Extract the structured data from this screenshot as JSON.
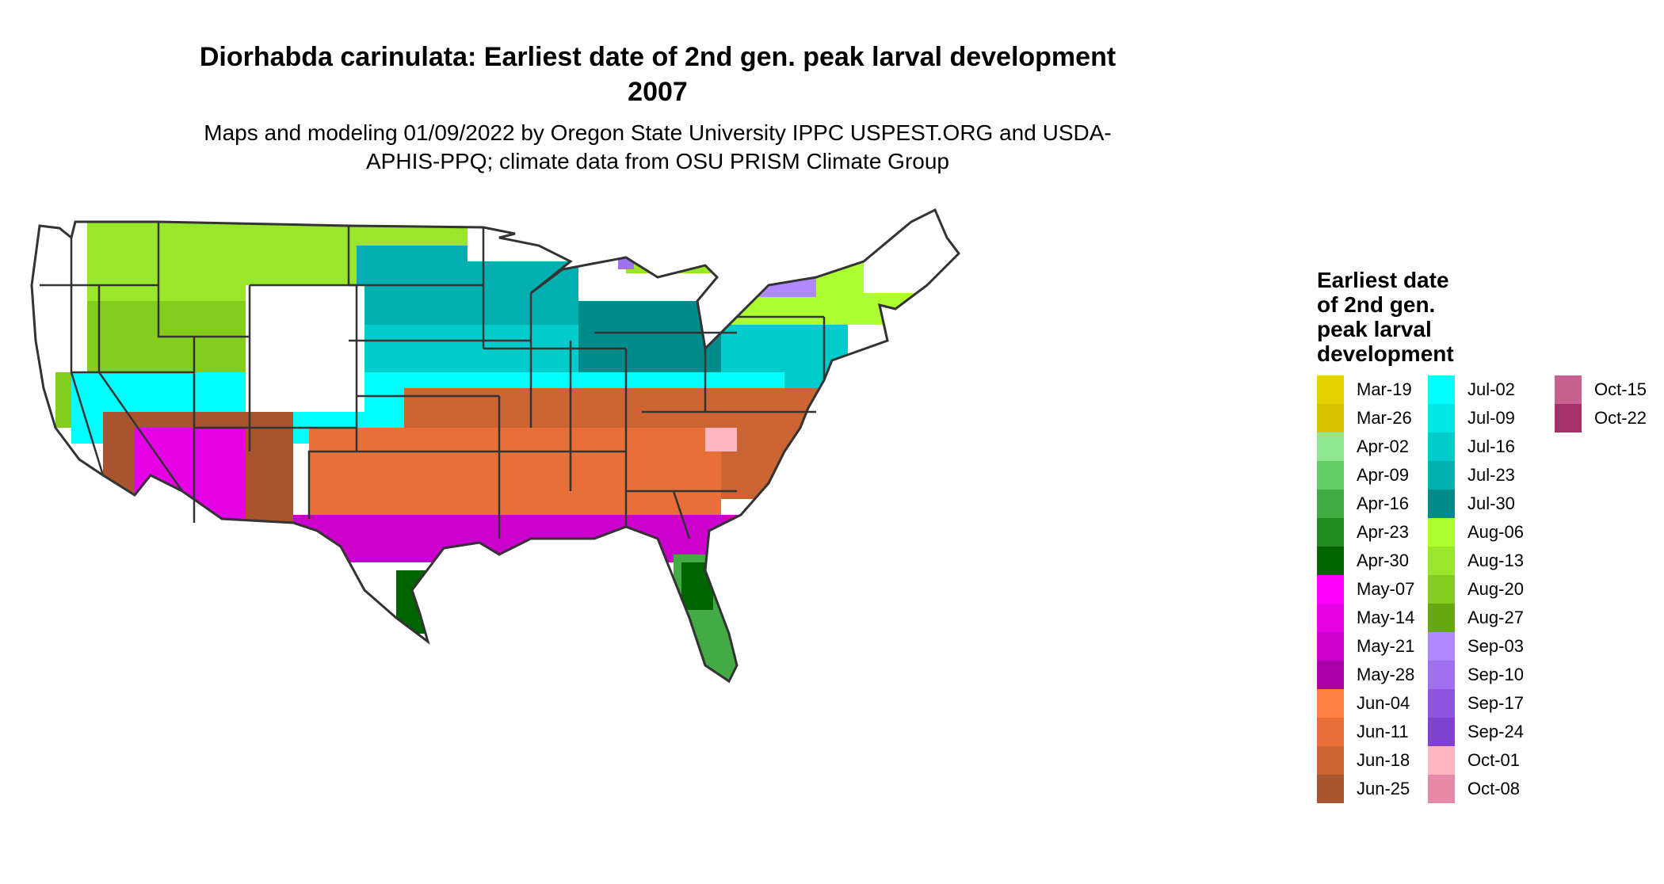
{
  "title": "Diorhabda carinulata: Earliest date of 2nd gen. peak larval development 2007",
  "subtitle": "Maps and modeling 01/09/2022 by Oregon State University IPPC USPEST.ORG and USDA-APHIS-PPQ; climate data from OSU PRISM Climate Group",
  "legend": {
    "title": "Earliest date of 2nd gen. peak larval development",
    "items": [
      {
        "label": "Mar-19",
        "color": "#E6D200"
      },
      {
        "label": "Mar-26",
        "color": "#D9C200"
      },
      {
        "label": "Apr-02",
        "color": "#8EE88E"
      },
      {
        "label": "Apr-09",
        "color": "#66CC66"
      },
      {
        "label": "Apr-16",
        "color": "#44AA44"
      },
      {
        "label": "Apr-23",
        "color": "#228B22"
      },
      {
        "label": "Apr-30",
        "color": "#006400"
      },
      {
        "label": "May-07",
        "color": "#FF00FF"
      },
      {
        "label": "May-14",
        "color": "#E600E6"
      },
      {
        "label": "May-21",
        "color": "#CC00CC"
      },
      {
        "label": "May-28",
        "color": "#AA00AA"
      },
      {
        "label": "Jun-04",
        "color": "#FF8040"
      },
      {
        "label": "Jun-11",
        "color": "#E87038"
      },
      {
        "label": "Jun-18",
        "color": "#CC6433"
      },
      {
        "label": "Jun-25",
        "color": "#A8542E"
      },
      {
        "label": "Jul-02",
        "color": "#00FFFF"
      },
      {
        "label": "Jul-09",
        "color": "#00E5E5"
      },
      {
        "label": "Jul-16",
        "color": "#00CCCC"
      },
      {
        "label": "Jul-23",
        "color": "#00B0B0"
      },
      {
        "label": "Jul-30",
        "color": "#008B8B"
      },
      {
        "label": "Aug-06",
        "color": "#ADFF2F"
      },
      {
        "label": "Aug-13",
        "color": "#9AE62A"
      },
      {
        "label": "Aug-20",
        "color": "#84CC1E"
      },
      {
        "label": "Aug-27",
        "color": "#66A80F"
      },
      {
        "label": "Sep-03",
        "color": "#B088FF"
      },
      {
        "label": "Sep-10",
        "color": "#A070F0"
      },
      {
        "label": "Sep-17",
        "color": "#9055E0"
      },
      {
        "label": "Sep-24",
        "color": "#8040D0"
      },
      {
        "label": "Oct-01",
        "color": "#FFB6C1"
      },
      {
        "label": "Oct-08",
        "color": "#E68AA8"
      },
      {
        "label": "Oct-15",
        "color": "#C86090"
      },
      {
        "label": "Oct-22",
        "color": "#A8306A"
      }
    ]
  }
}
